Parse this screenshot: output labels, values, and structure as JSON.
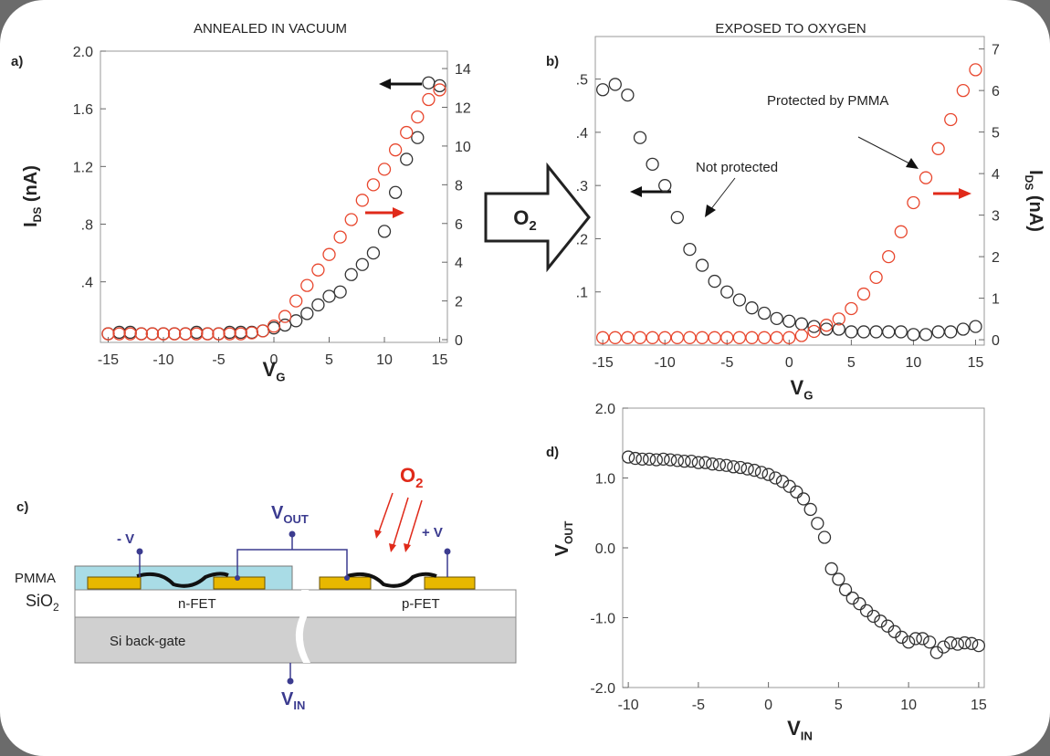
{
  "chart_data": [
    {
      "type": "scatter",
      "panel_label": "a)",
      "title": "ANNEALED IN VACUUM",
      "x_label": {
        "main": "V",
        "sub": "G"
      },
      "y_label": {
        "main": "I",
        "sub": "DS",
        "rest": " (nA)"
      },
      "x": [
        -15,
        -14,
        -13,
        -12,
        -11,
        -10,
        -9,
        -8,
        -7,
        -6,
        -5,
        -4,
        -3,
        -2,
        -1,
        0,
        1,
        2,
        3,
        4,
        5,
        6,
        7,
        8,
        9,
        10,
        11,
        12,
        13,
        14,
        15
      ],
      "xlim": [
        -15.7,
        15.7
      ],
      "xticks": [
        -15,
        -10,
        -5,
        0,
        5,
        10,
        15
      ],
      "ylim": [
        -0.02,
        2.0
      ],
      "yticks": [
        {
          "value": 0.4,
          "label": ".4"
        },
        {
          "value": 0.8,
          "label": ".8"
        },
        1.2,
        1.6,
        {
          "value": 2,
          "label": "2.0"
        }
      ],
      "y2lim": [
        -0.14,
        14.9
      ],
      "y2ticks": [
        0,
        2,
        4,
        6,
        8,
        10,
        12,
        14
      ],
      "series": [
        {
          "color": "#333333",
          "axis": "y",
          "values": [
            0.04,
            0.05,
            0.05,
            0.04,
            0.04,
            0.04,
            0.04,
            0.04,
            0.05,
            0.04,
            0.04,
            0.05,
            0.05,
            0.05,
            0.06,
            0.08,
            0.1,
            0.13,
            0.18,
            0.24,
            0.3,
            0.33,
            0.45,
            0.52,
            0.6,
            0.75,
            1.02,
            1.25,
            1.4,
            1.78,
            1.76
          ]
        },
        {
          "color": "#e8472e",
          "axis": "y2",
          "values": [
            0.3,
            0.3,
            0.3,
            0.3,
            0.3,
            0.3,
            0.3,
            0.3,
            0.3,
            0.3,
            0.3,
            0.3,
            0.3,
            0.35,
            0.45,
            0.7,
            1.2,
            2.0,
            2.8,
            3.6,
            4.4,
            5.3,
            6.2,
            7.2,
            8.0,
            8.8,
            9.8,
            10.7,
            11.5,
            12.4,
            12.9
          ]
        }
      ]
    },
    {
      "type": "scatter",
      "panel_label": "b)",
      "title": "EXPOSED TO OXYGEN",
      "x_label": {
        "main": "V",
        "sub": "G"
      },
      "y2_label": {
        "main": "I",
        "sub": "DS",
        "rest": " (nA)"
      },
      "annotations": [
        "Protected by PMMA",
        "Not protected"
      ],
      "x": [
        -15,
        -14,
        -13,
        -12,
        -11,
        -10,
        -9,
        -8,
        -7,
        -6,
        -5,
        -4,
        -3,
        -2,
        -1,
        0,
        1,
        2,
        3,
        4,
        5,
        6,
        7,
        8,
        9,
        10,
        11,
        12,
        13,
        14,
        15
      ],
      "xlim": [
        -15.6,
        15.7
      ],
      "xticks": [
        -15,
        -10,
        -5,
        0,
        5,
        10,
        15
      ],
      "ylim": [
        0,
        0.58
      ],
      "yticks": [
        {
          "value": 0.1,
          "label": ".1"
        },
        {
          "value": 0.2,
          "label": ".2"
        },
        {
          "value": 0.3,
          "label": ".3"
        },
        {
          "value": 0.4,
          "label": ".4"
        },
        {
          "value": 0.5,
          "label": ".5"
        }
      ],
      "y2lim": [
        -0.13,
        7.3
      ],
      "y2ticks": [
        0,
        1,
        2,
        3,
        4,
        5,
        6,
        7
      ],
      "series": [
        {
          "color": "#333333",
          "axis": "y",
          "values": [
            0.48,
            0.49,
            0.47,
            0.39,
            0.34,
            0.3,
            0.24,
            0.18,
            0.15,
            0.12,
            0.1,
            0.085,
            0.07,
            0.06,
            0.05,
            0.045,
            0.04,
            0.035,
            0.03,
            0.03,
            0.025,
            0.025,
            0.025,
            0.025,
            0.025,
            0.02,
            0.02,
            0.025,
            0.025,
            0.03,
            0.035
          ]
        },
        {
          "color": "#e8472e",
          "axis": "y2",
          "values": [
            0.05,
            0.05,
            0.05,
            0.05,
            0.05,
            0.05,
            0.05,
            0.05,
            0.05,
            0.05,
            0.05,
            0.05,
            0.05,
            0.05,
            0.05,
            0.05,
            0.1,
            0.2,
            0.35,
            0.5,
            0.75,
            1.1,
            1.5,
            2.0,
            2.6,
            3.3,
            3.9,
            4.6,
            5.3,
            6.0,
            6.5
          ]
        }
      ]
    },
    {
      "type": "scatter",
      "panel_label": "d)",
      "x_label": {
        "main": "V",
        "sub": "IN"
      },
      "y_label": {
        "main": "V",
        "sub": "OUT"
      },
      "x": [
        -10,
        -9.5,
        -9,
        -8.5,
        -8,
        -7.5,
        -7,
        -6.5,
        -6,
        -5.5,
        -5,
        -4.5,
        -4,
        -3.5,
        -3,
        -2.5,
        -2,
        -1.5,
        -1,
        -0.5,
        0,
        0.5,
        1,
        1.5,
        2,
        2.5,
        3,
        3.5,
        4,
        4.5,
        5,
        5.5,
        6,
        6.5,
        7,
        7.5,
        8,
        8.5,
        9,
        9.5,
        10,
        10.5,
        11,
        11.5,
        12,
        12.5,
        13,
        13.5,
        14,
        14.5,
        15
      ],
      "xlim": [
        -10.4,
        15.4
      ],
      "xticks": [
        -10,
        -5,
        0,
        5,
        10,
        15
      ],
      "ylim": [
        -2.0,
        2.0
      ],
      "yticks": [
        {
          "value": -2,
          "label": "-2.0"
        },
        {
          "value": -1,
          "label": "-1.0"
        },
        {
          "value": 0,
          "label": "0.0"
        },
        {
          "value": 1,
          "label": "1.0"
        },
        {
          "value": 2,
          "label": "2.0"
        }
      ],
      "series": [
        {
          "color": "#333333",
          "axis": "y",
          "values": [
            1.3,
            1.28,
            1.27,
            1.27,
            1.26,
            1.27,
            1.26,
            1.25,
            1.24,
            1.24,
            1.22,
            1.22,
            1.2,
            1.19,
            1.18,
            1.16,
            1.15,
            1.13,
            1.11,
            1.08,
            1.05,
            1.0,
            0.95,
            0.88,
            0.8,
            0.7,
            0.55,
            0.35,
            0.15,
            -0.3,
            -0.45,
            -0.6,
            -0.72,
            -0.8,
            -0.9,
            -0.98,
            -1.05,
            -1.12,
            -1.2,
            -1.28,
            -1.35,
            -1.3,
            -1.3,
            -1.35,
            -1.5,
            -1.42,
            -1.36,
            -1.38,
            -1.36,
            -1.37,
            -1.4
          ]
        }
      ]
    }
  ],
  "transition": {
    "main": "O",
    "sub": "2"
  },
  "diagram": {
    "panel_label": "c)",
    "layers": {
      "pmma": "PMMA",
      "sio2": {
        "main": "SiO",
        "sub": "2"
      },
      "si": "Si back-gate"
    },
    "devices": [
      "n-FET",
      "p-FET"
    ],
    "terminals": {
      "minus_v": "- V",
      "plus_v": "+ V",
      "v_out": {
        "main": "V",
        "sub": "OUT"
      },
      "v_in": {
        "main": "V",
        "sub": "IN"
      }
    },
    "gas": {
      "main": "O",
      "sub": "2"
    }
  }
}
